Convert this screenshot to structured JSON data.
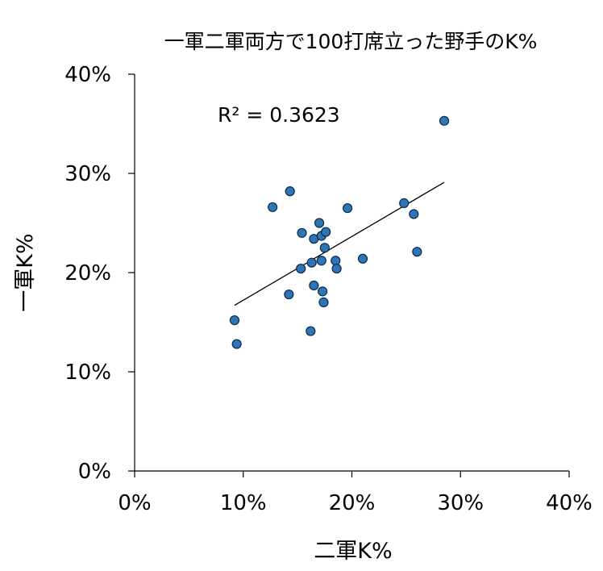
{
  "chart_data": {
    "type": "scatter",
    "title": "一軍二軍両方で100打席立った野手のK%",
    "xlabel": "二軍K%",
    "ylabel": "一軍K%",
    "xlim": [
      0,
      40
    ],
    "ylim": [
      0,
      40
    ],
    "x_ticks": [
      "0%",
      "10%",
      "20%",
      "30%",
      "40%"
    ],
    "y_ticks": [
      "0%",
      "10%",
      "20%",
      "30%",
      "40%"
    ],
    "grid": false,
    "legend": "none",
    "annotation": "R² = 0.3623",
    "marker_color": "#2e75b6",
    "marker_edge_color": "#0b2a4a",
    "trendline": {
      "x_start": 9.2,
      "y_start": 16.7,
      "x_end": 28.5,
      "y_end": 29.1
    },
    "points": [
      {
        "x": 9.2,
        "y": 15.2
      },
      {
        "x": 9.4,
        "y": 12.8
      },
      {
        "x": 12.7,
        "y": 26.6
      },
      {
        "x": 14.2,
        "y": 17.8
      },
      {
        "x": 14.3,
        "y": 28.2
      },
      {
        "x": 15.3,
        "y": 20.4
      },
      {
        "x": 15.4,
        "y": 24.0
      },
      {
        "x": 16.2,
        "y": 14.1
      },
      {
        "x": 16.3,
        "y": 21.0
      },
      {
        "x": 16.5,
        "y": 18.7
      },
      {
        "x": 16.5,
        "y": 23.4
      },
      {
        "x": 17.0,
        "y": 25.0
      },
      {
        "x": 17.2,
        "y": 23.7
      },
      {
        "x": 17.2,
        "y": 21.2
      },
      {
        "x": 17.3,
        "y": 18.1
      },
      {
        "x": 17.4,
        "y": 17.0
      },
      {
        "x": 17.5,
        "y": 22.5
      },
      {
        "x": 17.6,
        "y": 24.1
      },
      {
        "x": 18.5,
        "y": 21.2
      },
      {
        "x": 18.6,
        "y": 20.4
      },
      {
        "x": 19.6,
        "y": 26.5
      },
      {
        "x": 21.0,
        "y": 21.4
      },
      {
        "x": 24.8,
        "y": 27.0
      },
      {
        "x": 25.7,
        "y": 25.9
      },
      {
        "x": 26.0,
        "y": 22.1
      },
      {
        "x": 28.5,
        "y": 35.3
      }
    ]
  }
}
